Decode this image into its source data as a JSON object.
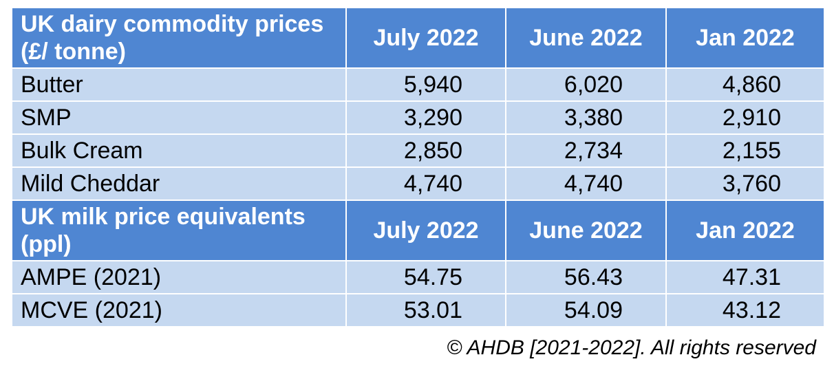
{
  "colors": {
    "header_bg": "#4f86d2",
    "row_bg": "#c5d8f0",
    "border": "#ffffff"
  },
  "section1": {
    "title": "UK dairy commodity prices (£/ tonne)",
    "columns": [
      "July 2022",
      "June 2022",
      "Jan 2022"
    ],
    "rows": [
      {
        "label": "Butter",
        "values": [
          "5,940",
          "6,020",
          "4,860"
        ]
      },
      {
        "label": "SMP",
        "values": [
          "3,290",
          "3,380",
          "2,910"
        ]
      },
      {
        "label": "Bulk Cream",
        "values": [
          "2,850",
          "2,734",
          "2,155"
        ]
      },
      {
        "label": "Mild Cheddar",
        "values": [
          "4,740",
          "4,740",
          "3,760"
        ]
      }
    ]
  },
  "section2": {
    "title": "UK milk price equivalents (ppl)",
    "columns": [
      "July 2022",
      "June 2022",
      "Jan 2022"
    ],
    "rows": [
      {
        "label": "AMPE (2021)",
        "values": [
          "54.75",
          "56.43",
          "47.31"
        ]
      },
      {
        "label": "MCVE (2021)",
        "values": [
          "53.01",
          "54.09",
          "43.12"
        ]
      }
    ]
  },
  "copyright": "© AHDB [2021-2022]. All rights reserved"
}
